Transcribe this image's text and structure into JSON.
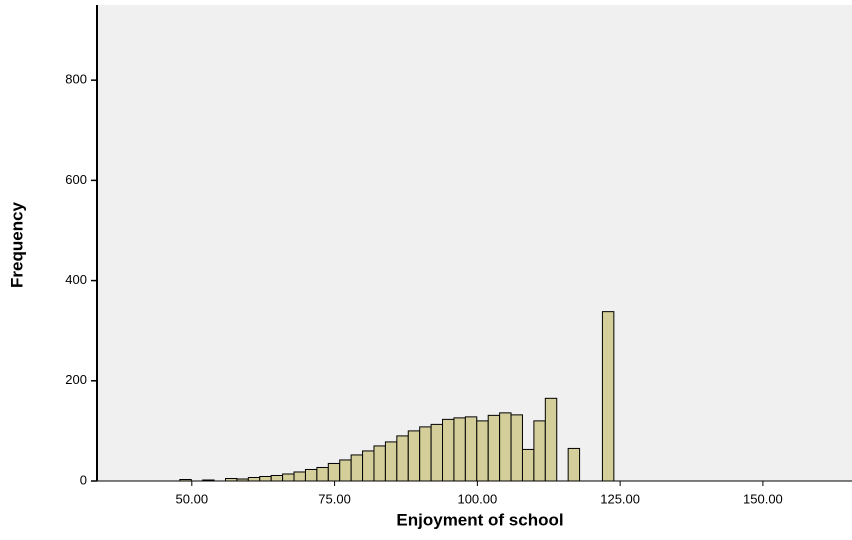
{
  "chart_data": {
    "type": "histogram",
    "x_label": "Enjoyment of school",
    "y_label": "Frequency",
    "bins": [
      47.9,
      49.9,
      51.9,
      53.9,
      55.9,
      57.9,
      59.9,
      61.9,
      63.9,
      65.9,
      67.9,
      69.9,
      71.9,
      73.9,
      75.9,
      77.9,
      79.9,
      81.9,
      83.9,
      85.9,
      87.9,
      89.9,
      91.9,
      93.9,
      95.9,
      97.9,
      99.9,
      101.9,
      103.9,
      105.9,
      107.9,
      109.9,
      111.9,
      113.9,
      115.9,
      117.9,
      119.9,
      121.9,
      123.9
    ],
    "values": [
      3,
      0,
      2,
      0,
      5,
      4,
      7,
      9,
      11,
      14,
      18,
      23,
      27,
      35,
      42,
      52,
      60,
      70,
      78,
      90,
      100,
      108,
      113,
      123,
      126,
      128,
      120,
      131,
      136,
      132,
      63,
      120,
      165,
      0,
      65,
      0,
      0,
      338
    ],
    "color": "#d3ce9a",
    "xlim": [
      33.4,
      165.6
    ],
    "xticks": [
      {
        "value": 50,
        "label": "50.00"
      },
      {
        "value": 75,
        "label": "75.00"
      },
      {
        "value": 100,
        "label": "100.00"
      },
      {
        "value": 125,
        "label": "125.00"
      },
      {
        "value": 150,
        "label": "150.00"
      }
    ],
    "ylim": [
      0,
      950
    ],
    "yticks": [
      0,
      200,
      400,
      600,
      800
    ]
  }
}
